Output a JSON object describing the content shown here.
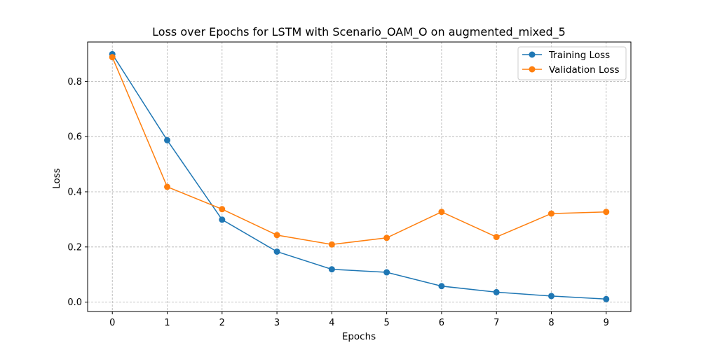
{
  "chart_data": {
    "type": "line",
    "title": "Loss over Epochs for LSTM with Scenario_OAM_O on augmented_mixed_5",
    "xlabel": "Epochs",
    "ylabel": "Loss",
    "x": [
      0,
      1,
      2,
      3,
      4,
      5,
      6,
      7,
      8,
      9
    ],
    "xticks": [
      "0",
      "1",
      "2",
      "3",
      "4",
      "5",
      "6",
      "7",
      "8",
      "9"
    ],
    "yticks": [
      "0.0",
      "0.2",
      "0.4",
      "0.6",
      "0.8"
    ],
    "xlim": [
      -0.45,
      9.45
    ],
    "ylim": [
      -0.034,
      0.943
    ],
    "grid": true,
    "legend_position": "top-right",
    "series": [
      {
        "name": "Training Loss",
        "color": "#1f77b4",
        "marker": "circle",
        "values": [
          0.899,
          0.587,
          0.299,
          0.183,
          0.119,
          0.108,
          0.058,
          0.036,
          0.022,
          0.011
        ]
      },
      {
        "name": "Validation Loss",
        "color": "#ff7f0e",
        "marker": "circle",
        "values": [
          0.888,
          0.418,
          0.337,
          0.243,
          0.209,
          0.233,
          0.327,
          0.236,
          0.321,
          0.327
        ]
      }
    ]
  }
}
